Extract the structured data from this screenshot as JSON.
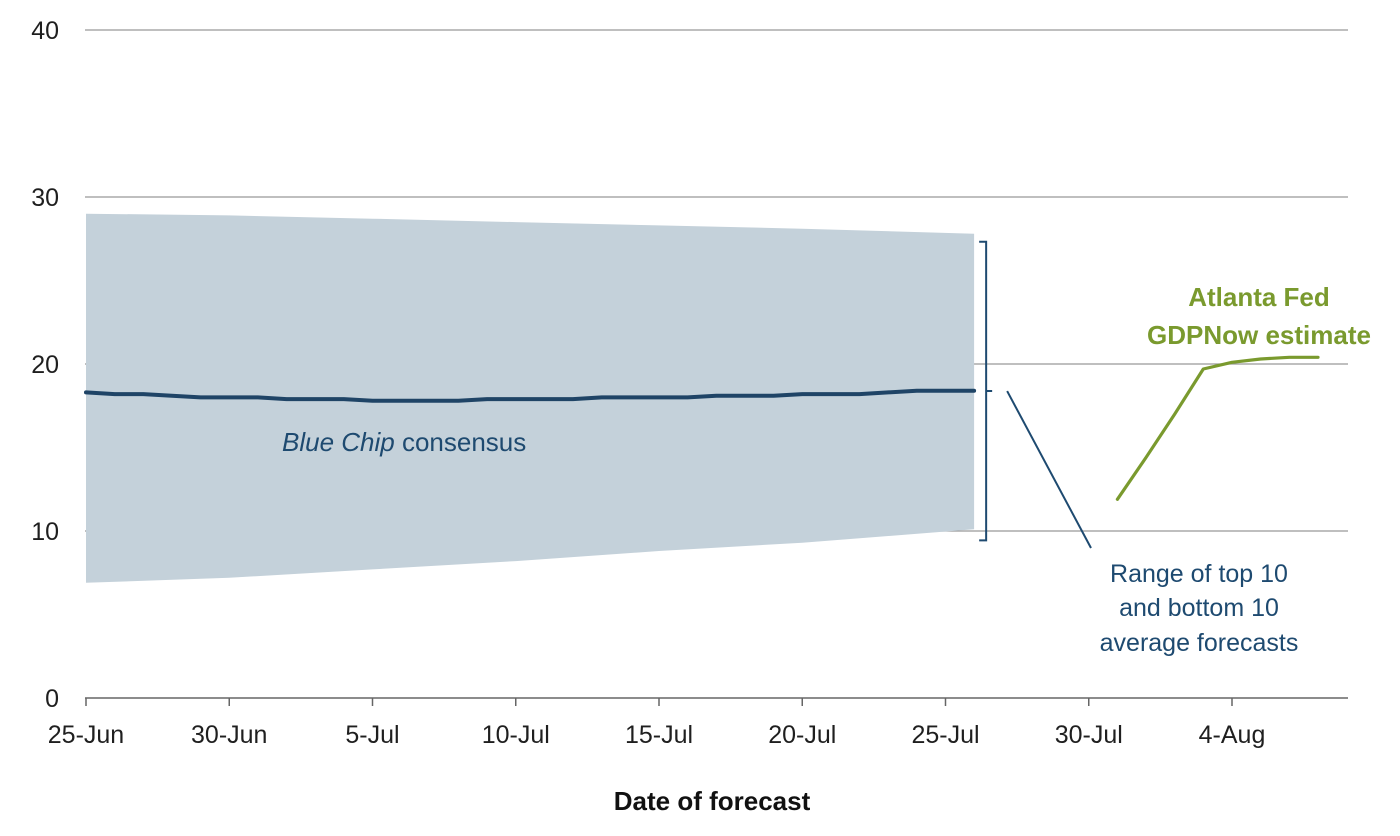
{
  "chart_data": {
    "type": "line",
    "title": "",
    "xlabel": "Date of forecast",
    "ylabel": "",
    "ylim": [
      0,
      40
    ],
    "y_ticks": [
      0,
      10,
      20,
      30,
      40
    ],
    "x_tick_labels": [
      "25-Jun",
      "30-Jun",
      "5-Jul",
      "10-Jul",
      "15-Jul",
      "20-Jul",
      "25-Jul",
      "30-Jul",
      "4-Aug"
    ],
    "grid": true,
    "legend": "none",
    "annotations": {
      "consensus": {
        "italic": "Blue Chip",
        "rest": " consensus"
      },
      "range": [
        "Range of top 10",
        "and bottom 10",
        "average forecasts"
      ],
      "gdpnow": [
        "Atlanta Fed",
        "GDPNow estimate"
      ]
    },
    "series": [
      {
        "type": "line",
        "x": [
          "25-Jun",
          "26-Jun",
          "27-Jun",
          "28-Jun",
          "29-Jun",
          "30-Jun",
          "1-Jul",
          "2-Jul",
          "3-Jul",
          "4-Jul",
          "5-Jul",
          "6-Jul",
          "7-Jul",
          "8-Jul",
          "9-Jul",
          "10-Jul",
          "11-Jul",
          "12-Jul",
          "13-Jul",
          "14-Jul",
          "15-Jul",
          "16-Jul",
          "17-Jul",
          "18-Jul",
          "19-Jul",
          "20-Jul",
          "21-Jul",
          "22-Jul",
          "23-Jul",
          "24-Jul",
          "25-Jul",
          "26-Jul"
        ],
        "values": [
          18.3,
          18.2,
          18.2,
          18.1,
          18.0,
          18.0,
          18.0,
          17.9,
          17.9,
          17.9,
          17.8,
          17.8,
          17.8,
          17.8,
          17.9,
          17.9,
          17.9,
          17.9,
          18.0,
          18.0,
          18.0,
          18.0,
          18.1,
          18.1,
          18.1,
          18.2,
          18.2,
          18.2,
          18.3,
          18.4,
          18.4,
          18.4
        ]
      },
      {
        "type": "band",
        "x": [
          "25-Jun",
          "30-Jun",
          "5-Jul",
          "10-Jul",
          "15-Jul",
          "20-Jul",
          "26-Jul"
        ],
        "upper": [
          29.0,
          28.9,
          28.7,
          28.5,
          28.3,
          28.1,
          27.8
        ],
        "lower": [
          6.9,
          7.2,
          7.7,
          8.2,
          8.8,
          9.3,
          10.1
        ]
      },
      {
        "type": "line",
        "x": [
          "31-Jul",
          "1-Aug",
          "2-Aug",
          "3-Aug",
          "4-Aug",
          "5-Aug",
          "6-Aug",
          "7-Aug"
        ],
        "values": [
          11.9,
          14.4,
          17.0,
          19.7,
          20.1,
          20.3,
          20.4,
          20.4
        ]
      }
    ],
    "colors": {
      "consensus": "#1f4466",
      "range": "#c4d1da",
      "gdpnow": "#7a9a2e",
      "range_label": "#1e4a70",
      "grid": "#999999",
      "axis": "#666666"
    }
  }
}
